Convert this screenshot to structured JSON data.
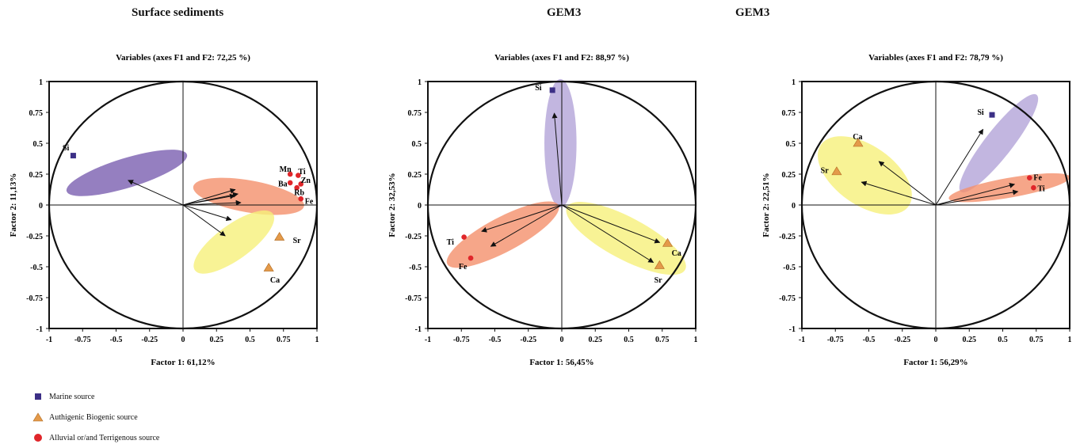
{
  "top_titles": [
    "Surface sediments",
    "GEM3",
    "GEM3"
  ],
  "legend": [
    {
      "label": "Marine source",
      "marker": "square",
      "color": "#3c2f86"
    },
    {
      "label": "Authigenic Biogenic source",
      "marker": "triangle",
      "color": "#e49a4a"
    },
    {
      "label": "Alluvial or/and Terrigenous source",
      "marker": "circle",
      "color": "#e0262a"
    }
  ],
  "chart_data": [
    {
      "type": "scatter",
      "title": "Variables (axes F1 and F2: 72,25 %)",
      "xlabel": "Factor 1: 61,12%",
      "ylabel": "Factor 2: 11,13%",
      "xlim": [
        -1,
        1
      ],
      "ylim": [
        -1,
        1
      ],
      "xticks": [
        "-1",
        "-0.75",
        "-0.5",
        "-0.25",
        "0",
        "0.25",
        "0.5",
        "0.75",
        "1"
      ],
      "yticks": [
        "1",
        "0.75",
        "0.5",
        "0.25",
        "0",
        "-0.25",
        "-0.5",
        "-0.75",
        "-1"
      ],
      "groups": [
        {
          "source": "Marine source",
          "color": "#7b5fb0",
          "cx": -0.42,
          "cy": 0.26,
          "rx": 0.47,
          "ry": 0.12,
          "angle": -17
        },
        {
          "source": "Alluvial or/and Terrigenous source",
          "color": "#f4906c",
          "cx": 0.49,
          "cy": 0.07,
          "rx": 0.42,
          "ry": 0.13,
          "angle": 10
        },
        {
          "source": "Authigenic Biogenic source",
          "color": "#f6f07a",
          "cx": 0.38,
          "cy": -0.3,
          "rx": 0.36,
          "ry": 0.14,
          "angle": -36
        }
      ],
      "arrows": [
        [
          -0.82,
          0.4
        ],
        [
          0.78,
          0.25
        ],
        [
          0.86,
          0.17
        ],
        [
          0.82,
          0.18
        ],
        [
          0.9,
          0.04
        ],
        [
          0.72,
          -0.24
        ],
        [
          0.63,
          -0.5
        ],
        [
          0.1,
          0.4
        ],
        [
          0.07,
          0.35
        ]
      ],
      "arrows_drawn": [
        [
          -0.82,
          0.4,
          0.5
        ],
        [
          0.78,
          0.25,
          0.5
        ],
        [
          0.86,
          0.17,
          0.45
        ],
        [
          0.82,
          0.18,
          0.5
        ],
        [
          0.9,
          0.04,
          0.48
        ],
        [
          0.72,
          -0.24,
          0.5
        ],
        [
          0.63,
          -0.5,
          0.5
        ]
      ],
      "variables": [
        {
          "label": "Si",
          "x": -0.82,
          "y": 0.4,
          "marker": "square",
          "lx": -0.9,
          "ly": 0.46
        },
        {
          "label": "Mn",
          "x": 0.8,
          "y": 0.25,
          "marker": "circle",
          "lx": 0.72,
          "ly": 0.29
        },
        {
          "label": "Ti",
          "x": 0.86,
          "y": 0.24,
          "marker": "circle",
          "lx": 0.86,
          "ly": 0.27
        },
        {
          "label": "Zn",
          "x": 0.88,
          "y": 0.17,
          "marker": "circle",
          "lx": 0.88,
          "ly": 0.2
        },
        {
          "label": "Ba",
          "x": 0.8,
          "y": 0.18,
          "marker": "circle",
          "lx": 0.71,
          "ly": 0.17
        },
        {
          "label": "Rb",
          "x": 0.85,
          "y": 0.14,
          "marker": "circle",
          "lx": 0.83,
          "ly": 0.1
        },
        {
          "label": "Fe",
          "x": 0.88,
          "y": 0.05,
          "marker": "circle",
          "lx": 0.91,
          "ly": 0.03
        },
        {
          "label": "Sr",
          "x": 0.72,
          "y": -0.26,
          "marker": "triangle",
          "lx": 0.82,
          "ly": -0.29
        },
        {
          "label": "Ca",
          "x": 0.64,
          "y": -0.51,
          "marker": "triangle",
          "lx": 0.65,
          "ly": -0.61
        }
      ]
    },
    {
      "type": "scatter",
      "title": "Variables (axes F1 and F2: 88,97 %)",
      "xlabel": "Factor 1: 56,45%",
      "ylabel": "Factor 2: 32,53%",
      "xlim": [
        -1,
        1
      ],
      "ylim": [
        -1,
        1
      ],
      "xticks": [
        "-1",
        "-0.75",
        "-0.5",
        "-0.25",
        "0",
        "0.25",
        "0.5",
        "0.75",
        "1"
      ],
      "yticks": [
        "1",
        "0.75",
        "0.5",
        "0.25",
        "0",
        "-0.25",
        "-0.5",
        "-0.75",
        "-1"
      ],
      "groups": [
        {
          "source": "Marine source",
          "color": "#b3a4d8",
          "cx": -0.01,
          "cy": 0.5,
          "rx": 0.12,
          "ry": 0.52,
          "angle": 0
        },
        {
          "source": "Alluvial or/and Terrigenous source",
          "color": "#f4906c",
          "cx": -0.44,
          "cy": -0.24,
          "rx": 0.47,
          "ry": 0.14,
          "angle": -28
        },
        {
          "source": "Authigenic Biogenic source",
          "color": "#f6f07a",
          "cx": 0.48,
          "cy": -0.27,
          "rx": 0.5,
          "ry": 0.17,
          "angle": 28
        }
      ],
      "arrows_drawn": [
        [
          -0.07,
          0.93,
          0.8
        ],
        [
          -0.73,
          -0.26,
          0.82
        ],
        [
          -0.68,
          -0.43,
          0.78
        ],
        [
          0.77,
          -0.32,
          0.95
        ],
        [
          0.72,
          -0.49,
          0.95
        ]
      ],
      "variables": [
        {
          "label": "Si",
          "x": -0.07,
          "y": 0.93,
          "marker": "square",
          "lx": -0.2,
          "ly": 0.95
        },
        {
          "label": "Ti",
          "x": -0.73,
          "y": -0.26,
          "marker": "circle",
          "lx": -0.86,
          "ly": -0.3
        },
        {
          "label": "Fe",
          "x": -0.68,
          "y": -0.43,
          "marker": "circle",
          "lx": -0.77,
          "ly": -0.5
        },
        {
          "label": "Ca",
          "x": 0.79,
          "y": -0.31,
          "marker": "triangle",
          "lx": 0.82,
          "ly": -0.39
        },
        {
          "label": "Sr",
          "x": 0.73,
          "y": -0.49,
          "marker": "triangle",
          "lx": 0.69,
          "ly": -0.61
        }
      ]
    },
    {
      "type": "scatter",
      "title": "Variables (axes F1 and F2: 78,79 %)",
      "xlabel": "Factor 1: 56,29%",
      "ylabel": "Factor 2: 22,51%",
      "xlim": [
        -1,
        1
      ],
      "ylim": [
        -1,
        1
      ],
      "xticks": [
        "-1",
        "-0.75",
        "-0.5",
        "-0.25",
        "0",
        "0.25",
        "0.5",
        "0.75",
        "1"
      ],
      "yticks": [
        "1",
        "0.75",
        "0.5",
        "0.25",
        "0",
        "-0.25",
        "-0.5",
        "-0.75",
        "-1"
      ],
      "groups": [
        {
          "source": "Marine source",
          "color": "#b3a4d8",
          "cx": 0.47,
          "cy": 0.5,
          "rx": 0.46,
          "ry": 0.11,
          "angle": -52
        },
        {
          "source": "Alluvial or/and Terrigenous source",
          "color": "#f4906c",
          "cx": 0.55,
          "cy": 0.14,
          "rx": 0.46,
          "ry": 0.08,
          "angle": -10
        },
        {
          "source": "Authigenic Biogenic source",
          "color": "#f6f07a",
          "cx": -0.53,
          "cy": 0.24,
          "rx": 0.4,
          "ry": 0.24,
          "angle": 35
        }
      ],
      "arrows_drawn": [
        [
          0.42,
          0.73,
          0.84
        ],
        [
          0.7,
          0.2,
          0.84
        ],
        [
          0.73,
          0.13,
          0.84
        ],
        [
          -0.59,
          0.49,
          0.72
        ],
        [
          -0.75,
          0.25,
          0.74
        ]
      ],
      "variables": [
        {
          "label": "Si",
          "x": 0.42,
          "y": 0.73,
          "marker": "square",
          "lx": 0.31,
          "ly": 0.75
        },
        {
          "label": "Fe",
          "x": 0.7,
          "y": 0.22,
          "marker": "circle",
          "lx": 0.73,
          "ly": 0.22
        },
        {
          "label": "Ti",
          "x": 0.73,
          "y": 0.14,
          "marker": "circle",
          "lx": 0.76,
          "ly": 0.13
        },
        {
          "label": "Ca",
          "x": -0.58,
          "y": 0.5,
          "marker": "triangle",
          "lx": -0.62,
          "ly": 0.55
        },
        {
          "label": "Sr",
          "x": -0.74,
          "y": 0.27,
          "marker": "triangle",
          "lx": -0.86,
          "ly": 0.28
        }
      ]
    }
  ]
}
